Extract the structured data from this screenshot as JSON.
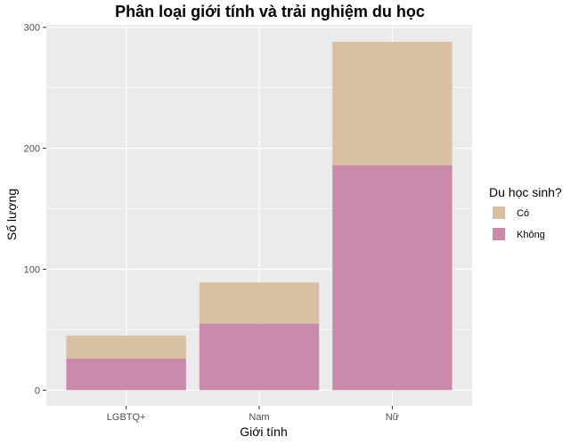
{
  "chart_data": {
    "type": "bar",
    "stacked": true,
    "title": "Phân loại giới tính và trải nghiệm du học",
    "xlabel": "Giới tính",
    "ylabel": "Số lượng",
    "categories": [
      "LGBTQ+",
      "Nam",
      "Nữ"
    ],
    "series": [
      {
        "name": "Không",
        "color": "#c98aab",
        "values": [
          26,
          55,
          186
        ]
      },
      {
        "name": "Có",
        "color": "#d9c0a3",
        "values": [
          19,
          34,
          102
        ]
      }
    ],
    "ylim": [
      -13,
      302
    ],
    "yticks": [
      0,
      100,
      200,
      300
    ],
    "grid": true,
    "legend": {
      "title": "Du học sinh?",
      "placement": "right",
      "order": [
        "Có",
        "Không"
      ]
    }
  }
}
